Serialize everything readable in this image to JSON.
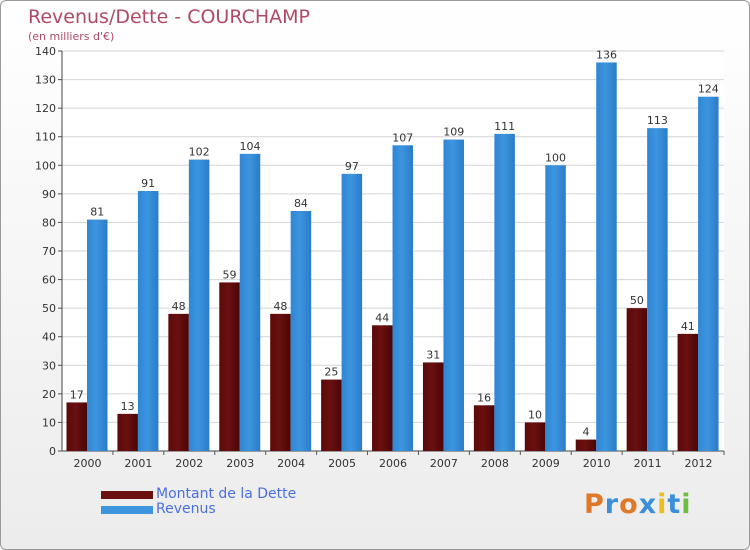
{
  "colors": {
    "dette": "#6b1010",
    "revenus": "#3d95de",
    "title": "#b04a64",
    "legend_text": "#4a6fe0"
  },
  "logo": {
    "text": "Proxiti",
    "letters": [
      "P",
      "r",
      "o",
      "x",
      "i",
      "t",
      "i"
    ],
    "letter_colors": [
      "#e0782a",
      "#3a8fd8",
      "#e0782a",
      "#3a8fd8",
      "#e8c020",
      "#3a8fd8",
      "#6cbf3c"
    ]
  },
  "chart_data": {
    "type": "bar",
    "title": "Revenus/Dette - COURCHAMP",
    "subtitle": "(en milliers d'€)",
    "xlabel": "",
    "ylabel": "",
    "categories": [
      "2000",
      "2001",
      "2002",
      "2003",
      "2004",
      "2005",
      "2006",
      "2007",
      "2008",
      "2009",
      "2010",
      "2011",
      "2012"
    ],
    "series": [
      {
        "name": "Montant de la Dette",
        "values": [
          17,
          13,
          48,
          59,
          48,
          25,
          44,
          31,
          16,
          10,
          4,
          50,
          41
        ]
      },
      {
        "name": "Revenus",
        "values": [
          81,
          91,
          102,
          104,
          84,
          97,
          107,
          109,
          111,
          100,
          136,
          113,
          124
        ]
      }
    ],
    "ylim": [
      0,
      140
    ],
    "yticks": [
      0,
      10,
      20,
      30,
      40,
      50,
      60,
      70,
      80,
      90,
      100,
      110,
      120,
      130,
      140
    ],
    "grid": true,
    "legend_position": "bottom-left"
  }
}
